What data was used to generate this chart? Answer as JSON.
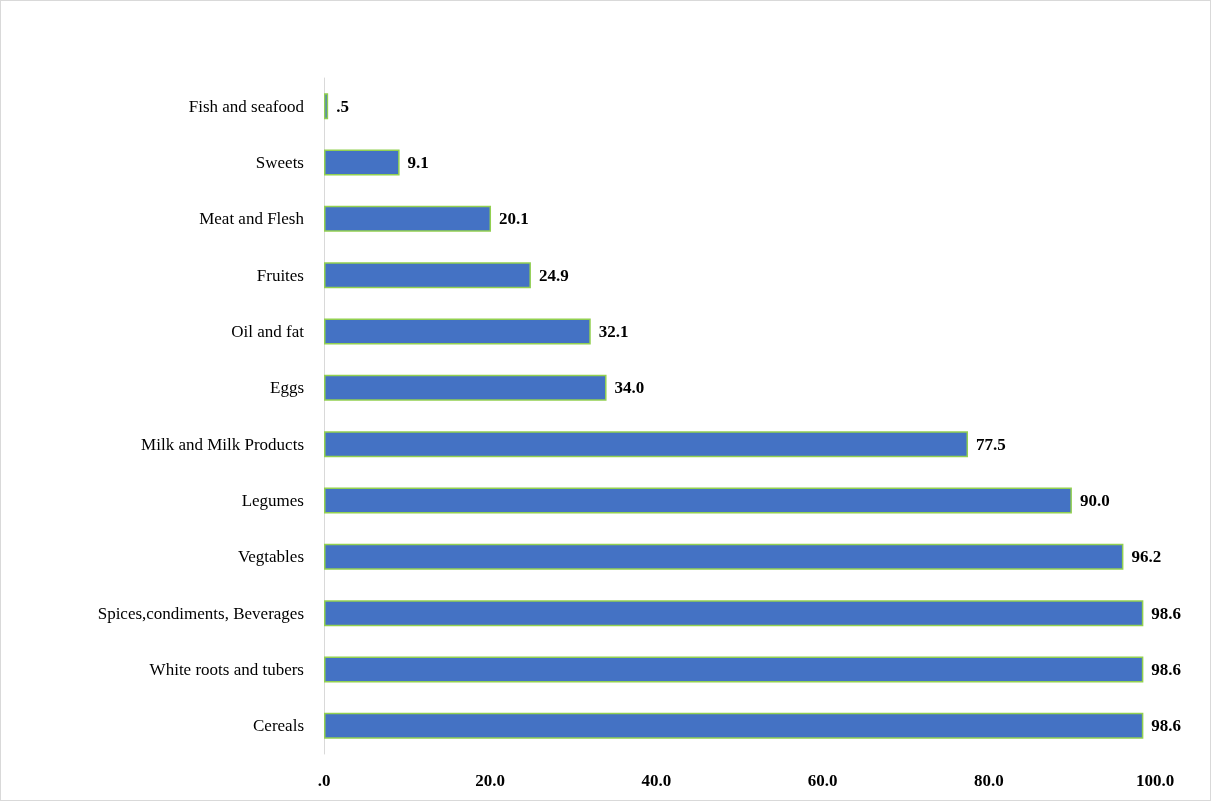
{
  "chart_data": {
    "type": "bar",
    "orientation": "horizontal",
    "categories": [
      "Fish and seafood",
      "Sweets",
      "Meat and Flesh",
      "Fruites",
      "Oil and fat",
      "Eggs",
      "Milk and Milk Products",
      "Legumes",
      "Vegtables",
      "Spices,condiments, Beverages",
      "White roots and tubers",
      "Cereals"
    ],
    "values": [
      0.5,
      9.1,
      20.1,
      24.9,
      32.1,
      34.0,
      77.5,
      90.0,
      96.2,
      98.6,
      98.6,
      98.6
    ],
    "value_labels": [
      ".5",
      "9.1",
      "20.1",
      "24.9",
      "32.1",
      "34.0",
      "77.5",
      "90.0",
      "96.2",
      "98.6",
      "98.6",
      "98.6"
    ],
    "color": "#4472c4",
    "xlim": [
      0,
      100
    ],
    "xticks": [
      {
        "value": 0,
        "label": ".0"
      },
      {
        "value": 20,
        "label": "20.0"
      },
      {
        "value": 40,
        "label": "40.0"
      },
      {
        "value": 60,
        "label": "60.0"
      },
      {
        "value": 80,
        "label": "80.0"
      },
      {
        "value": 100,
        "label": "100.0"
      }
    ],
    "grid": false
  }
}
